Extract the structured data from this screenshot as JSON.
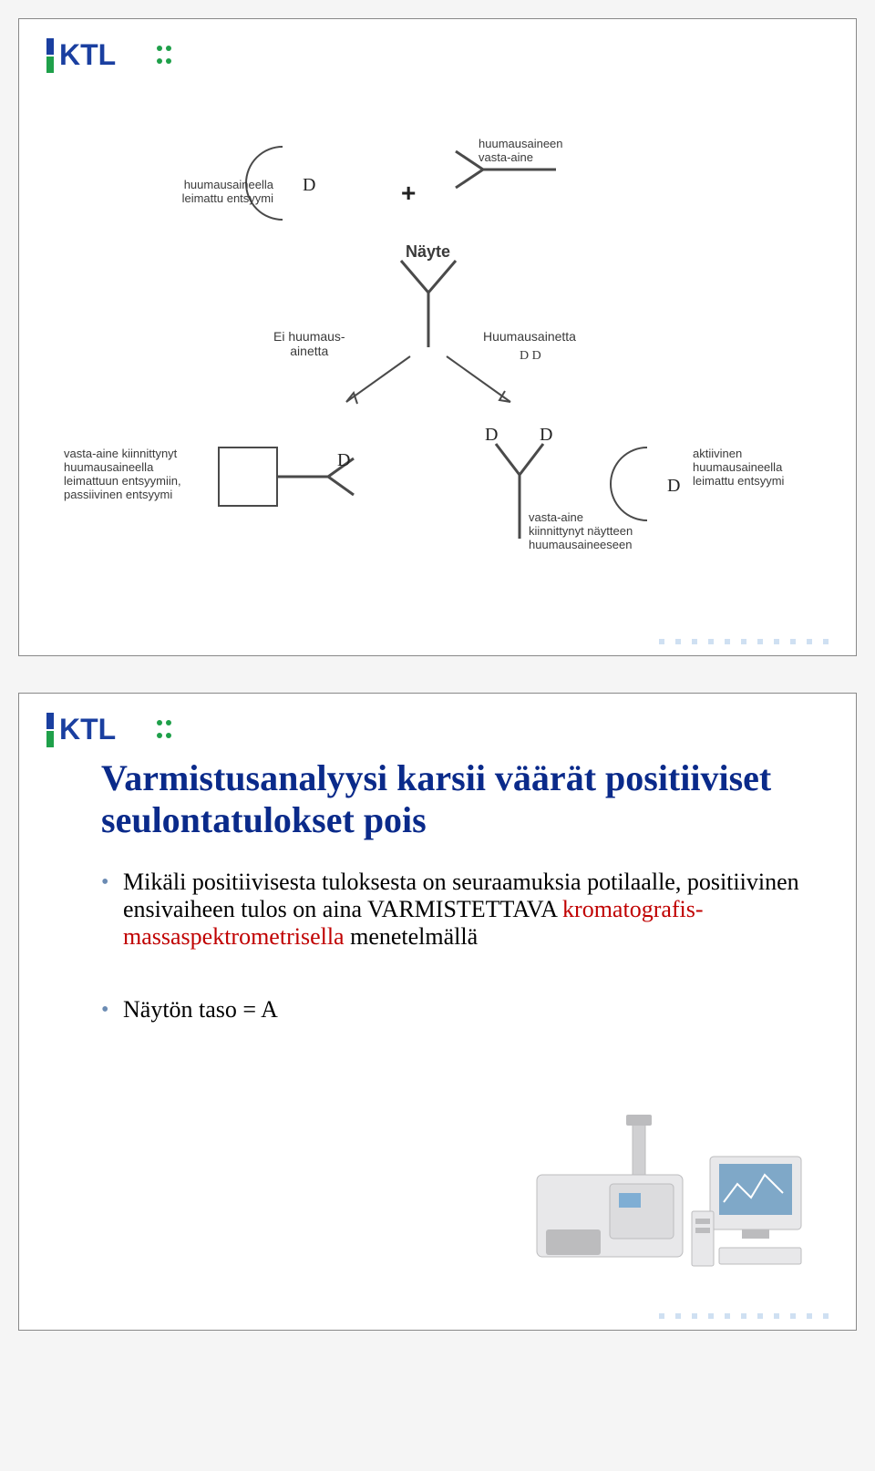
{
  "logo": {
    "bar_colors": [
      "#1a3fa0",
      "#1fa04a"
    ],
    "text_color": "#1a3fa0",
    "dot_color": "#1fa04a",
    "text": "KTL"
  },
  "slide1": {
    "diagram": {
      "labels": {
        "top_left_enzyme": "huumausaineella\nleimattu entsyymi",
        "top_right_antibody": "huumausaineen\nvasta-aine",
        "plus": "+",
        "sample": "Näyte",
        "no_drug": "Ei huumaus-\nainetta",
        "drug": "Huumausainetta",
        "drug_dd": "D D",
        "bottom_left": "vasta-aine kiinnittynyt\nhuumausaineella\nleimattuun entsyymiin,\npassiivinen entsyymi",
        "bottom_right_enzyme": "aktiivinen\nhuumausaineella\nleimattu entsyymi",
        "bottom_center": "vasta-aine\nkiinnittynyt näytteen\nhuumausaineeseen",
        "d": "D"
      },
      "stroke": "#4a4a4a",
      "fill": "#ffffff"
    }
  },
  "slide2": {
    "title": "Varmistusanalyysi karsii väärät positiiviset seulontatulokset pois",
    "bullet1_a": "Mikäli positiivisesta tuloksesta on seuraamuksia potilaalle, positiivinen ensivaiheen tulos  on aina VARMISTETTAVA ",
    "bullet1_b": "kromatografis-massaspektrometrisella",
    "bullet1_c": " menetelmällä",
    "bullet2": "Näytön taso = A",
    "colors": {
      "title": "#0a2a8a",
      "bullet_mark": "#6b8bb3",
      "highlight": "#c00000",
      "text": "#000000"
    },
    "instrument": {
      "body": "#e8e8ea",
      "dark": "#bcbcbe",
      "screen": "#7fa8c8",
      "accent": "#7faed4"
    }
  },
  "dots_color": "#cfe0f2"
}
